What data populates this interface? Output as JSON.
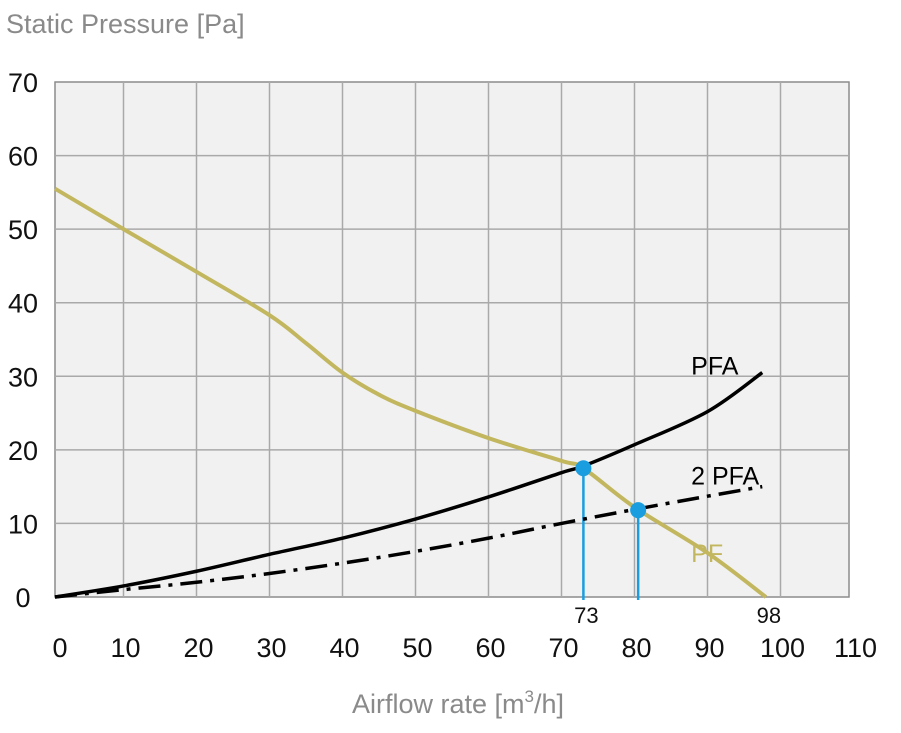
{
  "chart_data": {
    "type": "line",
    "title": "",
    "ylabel": "Static Pressure [Pa]",
    "xlabel": "Airflow rate [m³/h]",
    "xlabel_main": "Airflow rate [m",
    "xlabel_sup": "3",
    "xlabel_tail": "/h]",
    "xlim": [
      0,
      108.8
    ],
    "ylim": [
      0,
      70
    ],
    "grid": true,
    "x_ticks": [
      0,
      10,
      20,
      30,
      40,
      50,
      60,
      70,
      80,
      90,
      100,
      110
    ],
    "x_tick_labels": [
      "0",
      "10",
      "20",
      "30",
      "40",
      "50",
      "60",
      "70",
      "80",
      "90",
      "100",
      "110"
    ],
    "y_ticks": [
      0,
      10,
      20,
      30,
      40,
      50,
      60,
      70
    ],
    "y_tick_labels": [
      "0",
      "10",
      "20",
      "30",
      "40",
      "50",
      "60",
      "70"
    ],
    "series": [
      {
        "name": "PF",
        "label": "PF",
        "style": "solid",
        "color": "#c2b65f",
        "x": [
          0,
          10,
          20,
          30,
          35,
          40,
          45,
          50,
          60,
          70,
          73,
          80,
          90,
          98
        ],
        "y": [
          55.5,
          50,
          44.2,
          38.3,
          34.5,
          30.5,
          27.5,
          25.3,
          21.6,
          18.5,
          17.5,
          12.2,
          6.0,
          0
        ]
      },
      {
        "name": "PFA",
        "label": "PFA",
        "style": "solid",
        "color": "#000000",
        "x": [
          0,
          10,
          20,
          30,
          40,
          50,
          60,
          70,
          73,
          80,
          90,
          97.5
        ],
        "y": [
          0,
          1.5,
          3.5,
          5.8,
          8.0,
          10.6,
          13.6,
          16.9,
          17.8,
          20.7,
          25.2,
          30.5
        ]
      },
      {
        "name": "2 PFA",
        "label": "2 PFA",
        "style": "dashdot",
        "color": "#000000",
        "x": [
          0,
          10,
          20,
          30,
          40,
          50,
          60,
          70,
          80,
          90,
          97.5
        ],
        "y": [
          0,
          1.0,
          2.0,
          3.2,
          4.6,
          6.2,
          8.0,
          10.0,
          11.9,
          13.7,
          15.0
        ]
      }
    ],
    "operating_points": [
      {
        "x": 73,
        "y": 17.5,
        "color": "#1a9ee0",
        "label": "73"
      },
      {
        "x": 80.5,
        "y": 11.8,
        "color": "#1a9ee0",
        "label": ""
      }
    ],
    "annotations": [
      {
        "text": "73",
        "x": 73
      },
      {
        "text": "98",
        "x": 98
      }
    ],
    "series_label_positions": [
      {
        "name": "PFA",
        "x": 90.5,
        "y": 31.5
      },
      {
        "name": "2 PFA",
        "x": 90.5,
        "y": 16.5
      },
      {
        "name": "PF",
        "x": 90.5,
        "y": 6.0
      }
    ],
    "colors": {
      "plot_background": "#f1f1f1",
      "grid": "#a9a9a9",
      "marker": "#1a9ee0",
      "pf": "#c2b65f",
      "axis_title": "#8a8a8a"
    }
  }
}
